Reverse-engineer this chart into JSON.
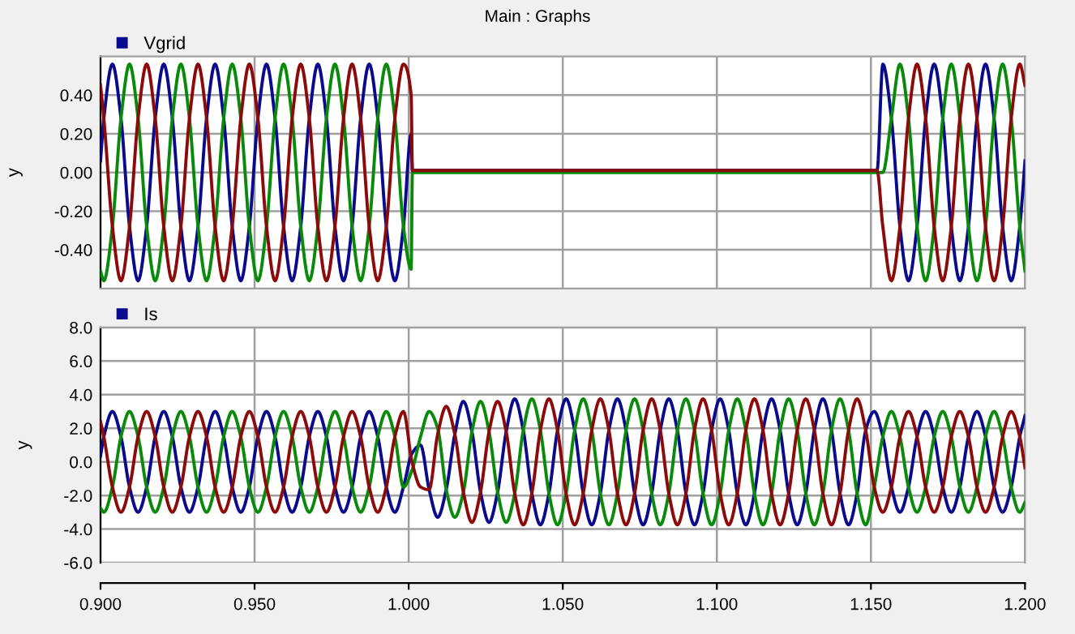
{
  "chart_data": [
    {
      "type": "line",
      "title": "Main : Graphs",
      "ylabel": "y",
      "xlim": [
        0.9,
        1.2
      ],
      "ylim": [
        -0.6,
        0.6
      ],
      "xticks": [
        0.9,
        0.95,
        1.0,
        1.05,
        1.1,
        1.15,
        1.2
      ],
      "yticks": [
        {
          "value": 0.4,
          "label": "0.40"
        },
        {
          "value": 0.2,
          "label": "0.20"
        },
        {
          "value": 0,
          "label": "0.00"
        },
        {
          "value": -0.2,
          "label": "-0.20"
        },
        {
          "value": -0.4,
          "label": "-0.40"
        }
      ],
      "tick_labels": "y",
      "grid": true,
      "legend": "top left",
      "x": [
        0.9,
        0.90108,
        0.90386,
        0.90664,
        0.90941,
        0.91219,
        0.91497,
        0.91775,
        0.92053,
        0.92331,
        0.92608,
        0.92886,
        0.93164,
        0.93441,
        0.93719,
        0.93997,
        0.94274,
        0.94552,
        0.9483,
        0.95108,
        0.95386,
        0.95664,
        0.95941,
        0.96219,
        0.96497,
        0.96775,
        0.97053,
        0.97331,
        0.97608,
        0.97886,
        0.98164,
        0.98441,
        0.98719,
        0.98997,
        0.99274,
        0.99552,
        0.9983,
        1.0008,
        1.0012,
        1.01,
        1.03,
        1.05,
        1.07,
        1.09,
        1.11,
        1.13,
        1.152,
        1.15386,
        1.15664,
        1.15941,
        1.16219,
        1.16497,
        1.16775,
        1.17053,
        1.17331,
        1.17608,
        1.17886,
        1.18164,
        1.18441,
        1.18719,
        1.18997,
        1.19274,
        1.19552,
        1.1983,
        1.2
      ],
      "series": [
        {
          "name": "Vgrid",
          "color": "#0a0a8c",
          "values": [
            0.06,
            0.28,
            0.56,
            0.28,
            -0.28,
            -0.56,
            -0.28,
            0.28,
            0.56,
            0.28,
            -0.28,
            -0.56,
            -0.28,
            0.28,
            0.56,
            0.28,
            -0.28,
            -0.56,
            -0.28,
            0.28,
            0.56,
            0.28,
            -0.28,
            -0.56,
            -0.28,
            0.28,
            0.56,
            0.28,
            -0.28,
            -0.56,
            -0.28,
            0.28,
            0.56,
            0.28,
            -0.28,
            -0.56,
            -0.28,
            0.2,
            0.01,
            0.01,
            0.01,
            0.01,
            0.01,
            0.01,
            0.01,
            0.01,
            0.01,
            0.56,
            0.28,
            -0.28,
            -0.56,
            -0.28,
            0.28,
            0.56,
            0.28,
            -0.28,
            -0.56,
            -0.28,
            0.28,
            0.56,
            0.28,
            -0.28,
            -0.56,
            -0.28,
            0.06
          ]
        },
        {
          "color": "#0a8a0a",
          "values": [
            -0.51,
            -0.56,
            -0.28,
            0.28,
            0.56,
            0.28,
            -0.28,
            -0.56,
            -0.28,
            0.28,
            0.56,
            0.28,
            -0.28,
            -0.56,
            -0.28,
            0.28,
            0.56,
            0.28,
            -0.28,
            -0.56,
            -0.28,
            0.28,
            0.56,
            0.28,
            -0.28,
            -0.56,
            -0.28,
            0.28,
            0.56,
            0.28,
            -0.28,
            -0.56,
            -0.28,
            0.28,
            0.56,
            0.28,
            -0.28,
            -0.5,
            0.0,
            0.0,
            0.0,
            0.0,
            0.0,
            0.0,
            0.0,
            0.0,
            0.0,
            0.0,
            0.28,
            0.56,
            0.28,
            -0.28,
            -0.56,
            -0.28,
            0.28,
            0.56,
            0.28,
            -0.28,
            -0.56,
            -0.28,
            0.28,
            0.56,
            0.28,
            -0.28,
            -0.51
          ]
        },
        {
          "color": "#8c0a0a",
          "values": [
            0.45,
            0.28,
            -0.28,
            -0.56,
            -0.28,
            0.28,
            0.56,
            0.28,
            -0.28,
            -0.56,
            -0.28,
            0.28,
            0.56,
            0.28,
            -0.28,
            -0.56,
            -0.28,
            0.28,
            0.56,
            0.28,
            -0.28,
            -0.56,
            -0.28,
            0.28,
            0.56,
            0.28,
            -0.28,
            -0.56,
            -0.28,
            0.28,
            0.56,
            0.28,
            -0.28,
            -0.56,
            -0.28,
            0.28,
            0.56,
            0.4,
            0.01,
            0.01,
            0.01,
            0.01,
            0.01,
            0.01,
            0.01,
            0.01,
            0.01,
            -0.28,
            -0.56,
            -0.28,
            0.28,
            0.56,
            0.28,
            -0.28,
            -0.56,
            -0.28,
            0.28,
            0.56,
            0.28,
            -0.28,
            -0.56,
            -0.28,
            0.28,
            0.56,
            0.45
          ]
        }
      ]
    },
    {
      "type": "line",
      "ylabel": "y",
      "xlim": [
        0.9,
        1.2
      ],
      "ylim": [
        -6,
        8
      ],
      "xticks": [
        {
          "value": 0.9,
          "label": "0.900"
        },
        {
          "value": 0.95,
          "label": "0.950"
        },
        {
          "value": 1.0,
          "label": "1.000"
        },
        {
          "value": 1.05,
          "label": "1.050"
        },
        {
          "value": 1.1,
          "label": "1.100"
        },
        {
          "value": 1.15,
          "label": "1.150"
        },
        {
          "value": 1.2,
          "label": "1.200"
        }
      ],
      "yticks": [
        {
          "value": 8,
          "label": "8.0"
        },
        {
          "value": 6,
          "label": "6.0"
        },
        {
          "value": 4,
          "label": "4.0"
        },
        {
          "value": 2,
          "label": "2.0"
        },
        {
          "value": 0,
          "label": "0.0"
        },
        {
          "value": -2,
          "label": "-2.0"
        },
        {
          "value": -4,
          "label": "-4.0"
        },
        {
          "value": -6,
          "label": "-6.0"
        }
      ],
      "grid": true,
      "legend": "top left",
      "x": [
        0.9,
        0.90108,
        0.90386,
        0.90664,
        0.90941,
        0.91219,
        0.91497,
        0.91775,
        0.92053,
        0.92331,
        0.92608,
        0.92886,
        0.93164,
        0.93441,
        0.93719,
        0.93997,
        0.94274,
        0.94552,
        0.9483,
        0.95108,
        0.95386,
        0.95664,
        0.95941,
        0.96219,
        0.96497,
        0.96775,
        0.97053,
        0.97331,
        0.97608,
        0.97886,
        0.98164,
        0.98441,
        0.98719,
        0.98997,
        0.99274,
        0.99552,
        0.9983,
        1.00108,
        1.00386,
        1.00664,
        1.00941,
        1.01219,
        1.01497,
        1.01775,
        1.02053,
        1.02331,
        1.02608,
        1.02886,
        1.03164,
        1.03441,
        1.03719,
        1.03997,
        1.04274,
        1.04552,
        1.0483,
        1.05108,
        1.05386,
        1.05664,
        1.05941,
        1.06219,
        1.06497,
        1.06775,
        1.07053,
        1.07331,
        1.07608,
        1.07886,
        1.08164,
        1.08441,
        1.08719,
        1.08997,
        1.09274,
        1.09552,
        1.0983,
        1.10108,
        1.10386,
        1.10664,
        1.10941,
        1.11219,
        1.11497,
        1.11775,
        1.12053,
        1.12331,
        1.12608,
        1.12886,
        1.13164,
        1.13441,
        1.13719,
        1.13997,
        1.14274,
        1.14552,
        1.1483,
        1.15108,
        1.15386,
        1.15664,
        1.15941,
        1.16219,
        1.16497,
        1.16775,
        1.17053,
        1.17331,
        1.17608,
        1.17886,
        1.18164,
        1.18441,
        1.18719,
        1.18997,
        1.19274,
        1.19552,
        1.1983,
        1.2
      ],
      "series": [
        {
          "name": "Is",
          "color": "#0a0a8c",
          "values": [
            0.35,
            1.5,
            3.0,
            1.5,
            -1.5,
            -3.0,
            -1.5,
            1.5,
            3.0,
            1.5,
            -1.5,
            -3.0,
            -1.5,
            1.5,
            3.0,
            1.5,
            -1.5,
            -3.0,
            -1.5,
            1.5,
            3.0,
            1.5,
            -1.5,
            -3.0,
            -1.5,
            1.5,
            3.0,
            1.5,
            -1.5,
            -3.0,
            -1.5,
            1.5,
            3.0,
            1.5,
            -1.5,
            -3.0,
            -1.5,
            0.5,
            1.0,
            -1.65,
            -3.3,
            -1.65,
            1.65,
            3.6,
            1.8,
            -1.8,
            -3.6,
            -1.8,
            1.8,
            3.75,
            1.88,
            -1.88,
            -3.75,
            -1.88,
            1.88,
            3.75,
            1.88,
            -1.88,
            -3.75,
            -1.88,
            1.88,
            3.75,
            1.88,
            -1.88,
            -3.75,
            -1.88,
            1.88,
            3.75,
            1.88,
            -1.88,
            -3.75,
            -1.88,
            1.88,
            3.75,
            1.88,
            -1.88,
            -3.75,
            -1.88,
            1.88,
            3.75,
            1.88,
            -1.88,
            -3.75,
            -1.88,
            1.88,
            3.75,
            1.88,
            -1.88,
            -3.75,
            -1.88,
            1.88,
            3.0,
            1.5,
            -1.5,
            -3.0,
            -1.5,
            1.5,
            3.0,
            1.5,
            -1.5,
            -3.0,
            -1.5,
            1.5,
            3.0,
            1.5,
            -1.5,
            -3.0,
            -1.5,
            1.5,
            2.75
          ]
        },
        {
          "color": "#0a8a0a",
          "values": [
            -2.75,
            -3.0,
            -1.5,
            1.5,
            3.0,
            1.5,
            -1.5,
            -3.0,
            -1.5,
            1.5,
            3.0,
            1.5,
            -1.5,
            -3.0,
            -1.5,
            1.5,
            3.0,
            1.5,
            -1.5,
            -3.0,
            -1.5,
            1.5,
            3.0,
            1.5,
            -1.5,
            -3.0,
            -1.5,
            1.5,
            3.0,
            1.5,
            -1.5,
            -3.0,
            -1.5,
            1.5,
            3.0,
            1.5,
            -1.5,
            -0.5,
            1.5,
            3.0,
            2.0,
            -1.65,
            -3.3,
            -1.8,
            1.8,
            3.6,
            1.8,
            -1.8,
            -3.6,
            -1.88,
            1.88,
            3.75,
            1.88,
            -1.88,
            -3.75,
            -1.88,
            1.88,
            3.75,
            1.88,
            -1.88,
            -3.75,
            -1.88,
            1.88,
            3.75,
            1.88,
            -1.88,
            -3.75,
            -1.88,
            1.88,
            3.75,
            1.88,
            -1.88,
            -3.75,
            -1.88,
            1.88,
            3.75,
            1.88,
            -1.88,
            -3.75,
            -1.88,
            1.88,
            3.75,
            1.88,
            -1.88,
            -3.75,
            -1.88,
            1.88,
            3.75,
            1.88,
            -1.88,
            -3.75,
            -1.5,
            1.5,
            3.0,
            1.5,
            -1.5,
            -3.0,
            -1.5,
            1.5,
            3.0,
            1.5,
            -1.5,
            -3.0,
            -1.5,
            1.5,
            3.0,
            1.5,
            -1.5,
            -3.0,
            -2.4
          ]
        },
        {
          "color": "#8c0a0a",
          "values": [
            2.4,
            1.5,
            -1.5,
            -3.0,
            -1.5,
            1.5,
            3.0,
            1.5,
            -1.5,
            -3.0,
            -1.5,
            1.5,
            3.0,
            1.5,
            -1.5,
            -3.0,
            -1.5,
            1.5,
            3.0,
            1.5,
            -1.5,
            -3.0,
            -1.5,
            1.5,
            3.0,
            1.5,
            -1.5,
            -3.0,
            -1.5,
            1.5,
            3.0,
            1.5,
            -1.5,
            -3.0,
            -1.5,
            1.5,
            3.0,
            0.0,
            -1.5,
            -1.65,
            1.65,
            3.3,
            1.65,
            -1.8,
            -3.6,
            -1.8,
            1.8,
            3.6,
            1.8,
            -1.88,
            -3.75,
            -1.88,
            1.88,
            3.75,
            1.88,
            -1.88,
            -3.75,
            -1.88,
            1.88,
            3.75,
            1.88,
            -1.88,
            -3.75,
            -1.88,
            1.88,
            3.75,
            1.88,
            -1.88,
            -3.75,
            -1.88,
            1.88,
            3.75,
            1.88,
            -1.88,
            -3.75,
            -1.88,
            1.88,
            3.75,
            1.88,
            -1.88,
            -3.75,
            -1.88,
            1.88,
            3.75,
            1.88,
            -1.88,
            -3.75,
            -1.88,
            1.88,
            3.75,
            1.88,
            -1.5,
            -3.0,
            -1.5,
            1.5,
            3.0,
            1.5,
            -1.5,
            -3.0,
            -1.5,
            1.5,
            3.0,
            1.5,
            -1.5,
            -3.0,
            -1.5,
            1.5,
            3.0,
            1.5,
            -0.35
          ]
        }
      ]
    }
  ]
}
